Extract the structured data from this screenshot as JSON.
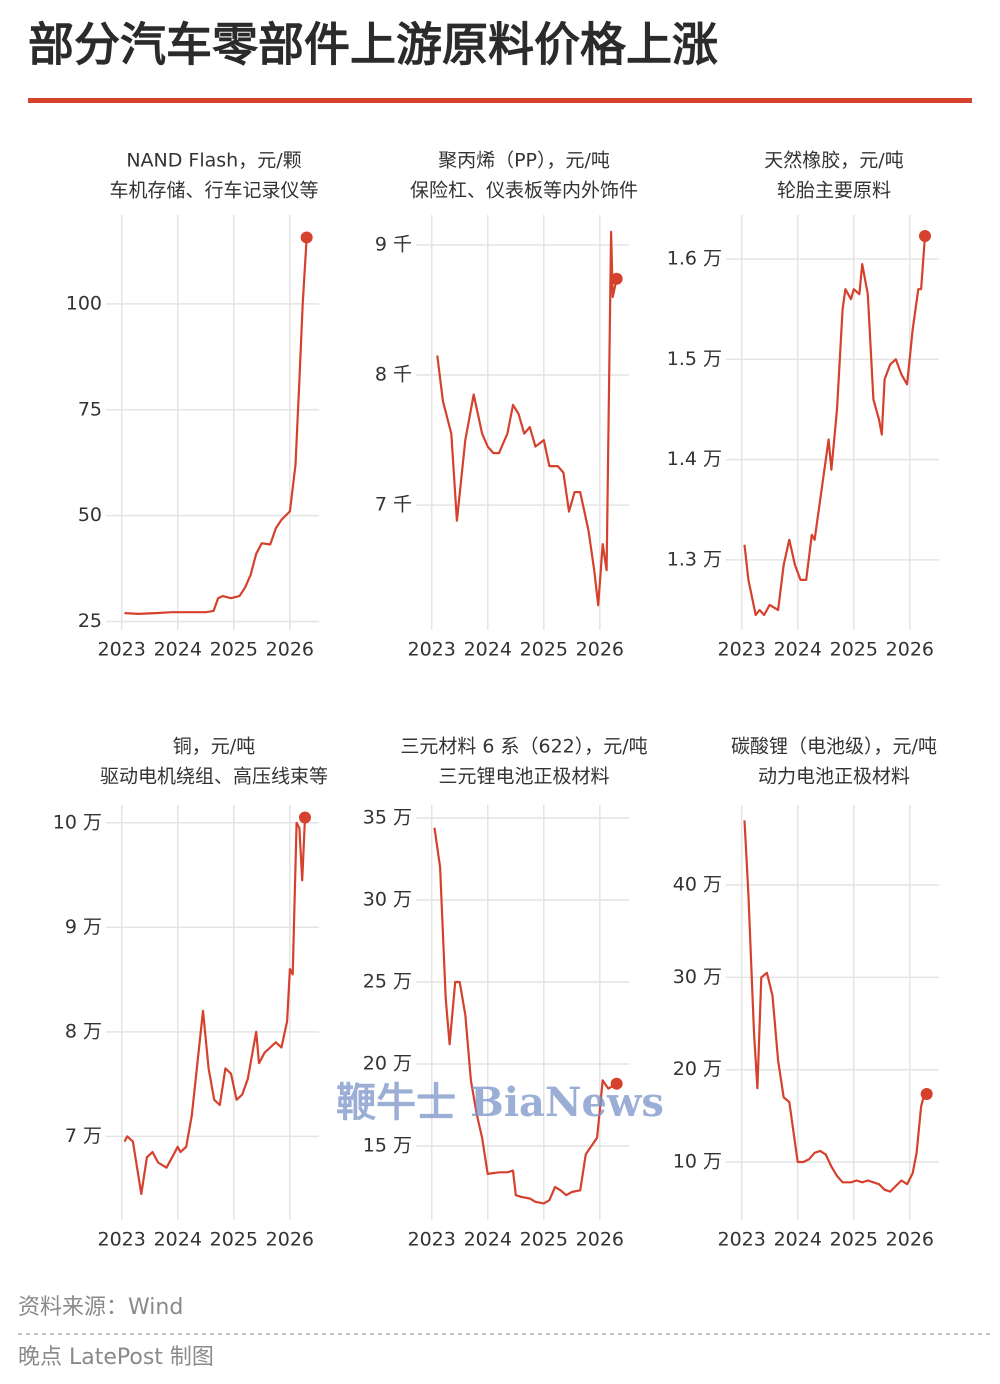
{
  "title": "部分汽车零部件上游原料价格上涨",
  "chart_data": [
    {
      "type": "line",
      "title": "NAND Flash，元/颗",
      "subtitle": "车机存储、行车记录仪等",
      "color": "#d5412d",
      "grid": true,
      "end_marker": true,
      "x": [
        2023.05,
        2023.3,
        2023.6,
        2023.9,
        2024.2,
        2024.5,
        2024.64,
        2024.72,
        2024.8,
        2024.95,
        2025.1,
        2025.2,
        2025.3,
        2025.4,
        2025.5,
        2025.65,
        2025.75,
        2025.85,
        2026.0,
        2026.1,
        2026.17,
        2026.23,
        2026.3
      ],
      "values": [
        27,
        26.8,
        27,
        27.2,
        27.2,
        27.2,
        27.5,
        30.5,
        31,
        30.5,
        31,
        33,
        36,
        41,
        43.5,
        43.2,
        47,
        49,
        51,
        62,
        82,
        100,
        115.7
      ],
      "xlim": [
        2022.72,
        2026.52
      ],
      "xticks": [
        2023,
        2024,
        2025,
        2026
      ],
      "ylim": [
        23,
        121
      ],
      "yticks": [
        25,
        50,
        75,
        100
      ]
    },
    {
      "type": "line",
      "title": "聚丙烯（PP），元/吨",
      "subtitle": "保险杠、仪表板等内外饰件",
      "color": "#d5412d",
      "grid": true,
      "end_marker": true,
      "x": [
        2023.1,
        2023.2,
        2023.35,
        2023.45,
        2023.6,
        2023.75,
        2023.9,
        2024.0,
        2024.1,
        2024.2,
        2024.35,
        2024.45,
        2024.55,
        2024.65,
        2024.75,
        2024.85,
        2025.0,
        2025.1,
        2025.25,
        2025.35,
        2025.45,
        2025.55,
        2025.65,
        2025.8,
        2025.9,
        2025.97,
        2026.05,
        2026.12,
        2026.2,
        2026.23,
        2026.3
      ],
      "values": [
        8150,
        7800,
        7550,
        6880,
        7500,
        7850,
        7550,
        7450,
        7400,
        7400,
        7550,
        7770,
        7700,
        7550,
        7600,
        7450,
        7500,
        7300,
        7300,
        7250,
        6950,
        7100,
        7100,
        6800,
        6500,
        6230,
        6700,
        6500,
        9100,
        8600,
        8740
      ],
      "xlim": [
        2022.72,
        2026.52
      ],
      "xticks": [
        2023,
        2024,
        2025,
        2026
      ],
      "ylim": [
        6040,
        9230
      ],
      "yticks": [
        {
          "value": 7000,
          "label": "7 千"
        },
        {
          "value": 8000,
          "label": "8 千"
        },
        {
          "value": 9000,
          "label": "9 千"
        }
      ]
    },
    {
      "type": "line",
      "title": "天然橡胶，元/吨",
      "subtitle": "轮胎主要原料",
      "color": "#d5412d",
      "grid": true,
      "end_marker": true,
      "x": [
        2023.05,
        2023.12,
        2023.25,
        2023.32,
        2023.4,
        2023.5,
        2023.65,
        2023.75,
        2023.85,
        2023.95,
        2024.05,
        2024.15,
        2024.25,
        2024.3,
        2024.45,
        2024.55,
        2024.6,
        2024.7,
        2024.8,
        2024.85,
        2024.95,
        2025.0,
        2025.1,
        2025.15,
        2025.25,
        2025.35,
        2025.45,
        2025.5,
        2025.55,
        2025.65,
        2025.75,
        2025.85,
        2025.95,
        2026.05,
        2026.15,
        2026.2,
        2026.27
      ],
      "values": [
        13150,
        12800,
        12450,
        12500,
        12450,
        12550,
        12500,
        12950,
        13200,
        12950,
        12800,
        12800,
        13250,
        13200,
        13800,
        14200,
        13900,
        14500,
        15500,
        15700,
        15600,
        15700,
        15650,
        15950,
        15650,
        14600,
        14400,
        14250,
        14800,
        14950,
        15000,
        14850,
        14750,
        15300,
        15700,
        15700,
        16230
      ],
      "xlim": [
        2022.72,
        2026.52
      ],
      "xticks": [
        2023,
        2024,
        2025,
        2026
      ],
      "ylim": [
        12300,
        16440
      ],
      "yticks": [
        {
          "value": 13000,
          "label": "1.3 万"
        },
        {
          "value": 14000,
          "label": "1.4 万"
        },
        {
          "value": 15000,
          "label": "1.5 万"
        },
        {
          "value": 16000,
          "label": "1.6 万"
        }
      ]
    },
    {
      "type": "line",
      "title": "铜，元/吨",
      "subtitle": "驱动电机绕组、高压线束等",
      "color": "#d5412d",
      "grid": true,
      "end_marker": true,
      "x": [
        2023.05,
        2023.1,
        2023.2,
        2023.35,
        2023.45,
        2023.55,
        2023.65,
        2023.8,
        2023.9,
        2024.0,
        2024.05,
        2024.15,
        2024.25,
        2024.35,
        2024.45,
        2024.55,
        2024.65,
        2024.75,
        2024.85,
        2024.95,
        2025.05,
        2025.15,
        2025.25,
        2025.3,
        2025.4,
        2025.45,
        2025.55,
        2025.65,
        2025.75,
        2025.85,
        2025.95,
        2026.0,
        2026.05,
        2026.12,
        2026.17,
        2026.22,
        2026.27
      ],
      "values": [
        69500,
        70000,
        69500,
        64500,
        68000,
        68500,
        67500,
        67000,
        68000,
        69000,
        68500,
        69000,
        72000,
        77000,
        82000,
        76500,
        73500,
        73000,
        76500,
        76000,
        73500,
        74000,
        75500,
        77000,
        80000,
        77000,
        78000,
        78500,
        79000,
        78500,
        81000,
        86000,
        85500,
        100000,
        99500,
        94500,
        100500
      ],
      "xlim": [
        2022.72,
        2026.52
      ],
      "xticks": [
        2023,
        2024,
        2025,
        2026
      ],
      "ylim": [
        62000,
        101700
      ],
      "yticks": [
        {
          "value": 70000,
          "label": "7 万"
        },
        {
          "value": 80000,
          "label": "8 万"
        },
        {
          "value": 90000,
          "label": "9 万"
        },
        {
          "value": 100000,
          "label": "10 万"
        }
      ]
    },
    {
      "type": "line",
      "title": "三元材料 6 系（622），元/吨",
      "subtitle": "三元锂电池正极材料",
      "color": "#d5412d",
      "grid": true,
      "end_marker": true,
      "x": [
        2023.05,
        2023.15,
        2023.25,
        2023.32,
        2023.42,
        2023.5,
        2023.6,
        2023.7,
        2023.8,
        2023.9,
        2024.0,
        2024.2,
        2024.35,
        2024.45,
        2024.5,
        2024.6,
        2024.75,
        2024.85,
        2025.0,
        2025.1,
        2025.2,
        2025.3,
        2025.4,
        2025.5,
        2025.65,
        2025.75,
        2025.85,
        2025.95,
        2026.05,
        2026.15,
        2026.3
      ],
      "values": [
        344000,
        320000,
        240000,
        212000,
        250000,
        250000,
        230000,
        190000,
        170000,
        155000,
        133000,
        134000,
        134000,
        135000,
        120000,
        119000,
        118000,
        116000,
        115000,
        117000,
        125000,
        123000,
        120000,
        122000,
        123000,
        145000,
        150000,
        155000,
        190000,
        185000,
        188000
      ],
      "xlim": [
        2022.72,
        2026.52
      ],
      "xticks": [
        2023,
        2024,
        2025,
        2026
      ],
      "ylim": [
        104900,
        357900
      ],
      "yticks": [
        {
          "value": 150000,
          "label": "15 万"
        },
        {
          "value": 200000,
          "label": "20 万"
        },
        {
          "value": 250000,
          "label": "25 万"
        },
        {
          "value": 300000,
          "label": "30 万"
        },
        {
          "value": 350000,
          "label": "35 万"
        }
      ]
    },
    {
      "type": "line",
      "title": "碳酸锂（电池级），元/吨",
      "subtitle": "动力电池正极材料",
      "color": "#d5412d",
      "grid": true,
      "end_marker": true,
      "x": [
        2023.05,
        2023.12,
        2023.22,
        2023.28,
        2023.35,
        2023.45,
        2023.55,
        2023.65,
        2023.75,
        2023.85,
        2024.0,
        2024.1,
        2024.2,
        2024.3,
        2024.4,
        2024.5,
        2024.6,
        2024.7,
        2024.8,
        2024.95,
        2025.05,
        2025.15,
        2025.25,
        2025.35,
        2025.45,
        2025.55,
        2025.65,
        2025.75,
        2025.85,
        2025.95,
        2026.05,
        2026.12,
        2026.2,
        2026.25,
        2026.3
      ],
      "values": [
        470000,
        390000,
        240000,
        180000,
        300000,
        305000,
        280000,
        210000,
        170000,
        165000,
        100000,
        100000,
        103000,
        110000,
        112000,
        108000,
        95000,
        85000,
        78000,
        78000,
        80000,
        78000,
        80000,
        78000,
        76000,
        70000,
        68000,
        74000,
        80000,
        76000,
        88000,
        110000,
        160000,
        172000,
        173700
      ],
      "xlim": [
        2022.72,
        2026.52
      ],
      "xticks": [
        2023,
        2024,
        2025,
        2026
      ],
      "ylim": [
        37200,
        486700
      ],
      "yticks": [
        {
          "value": 100000,
          "label": "10 万"
        },
        {
          "value": 200000,
          "label": "20 万"
        },
        {
          "value": 300000,
          "label": "30 万"
        },
        {
          "value": 400000,
          "label": "40 万"
        }
      ]
    }
  ],
  "watermark": "鞭牛士 BiaNews",
  "source": "资料来源：Wind",
  "credit": "晚点 LatePost 制图"
}
